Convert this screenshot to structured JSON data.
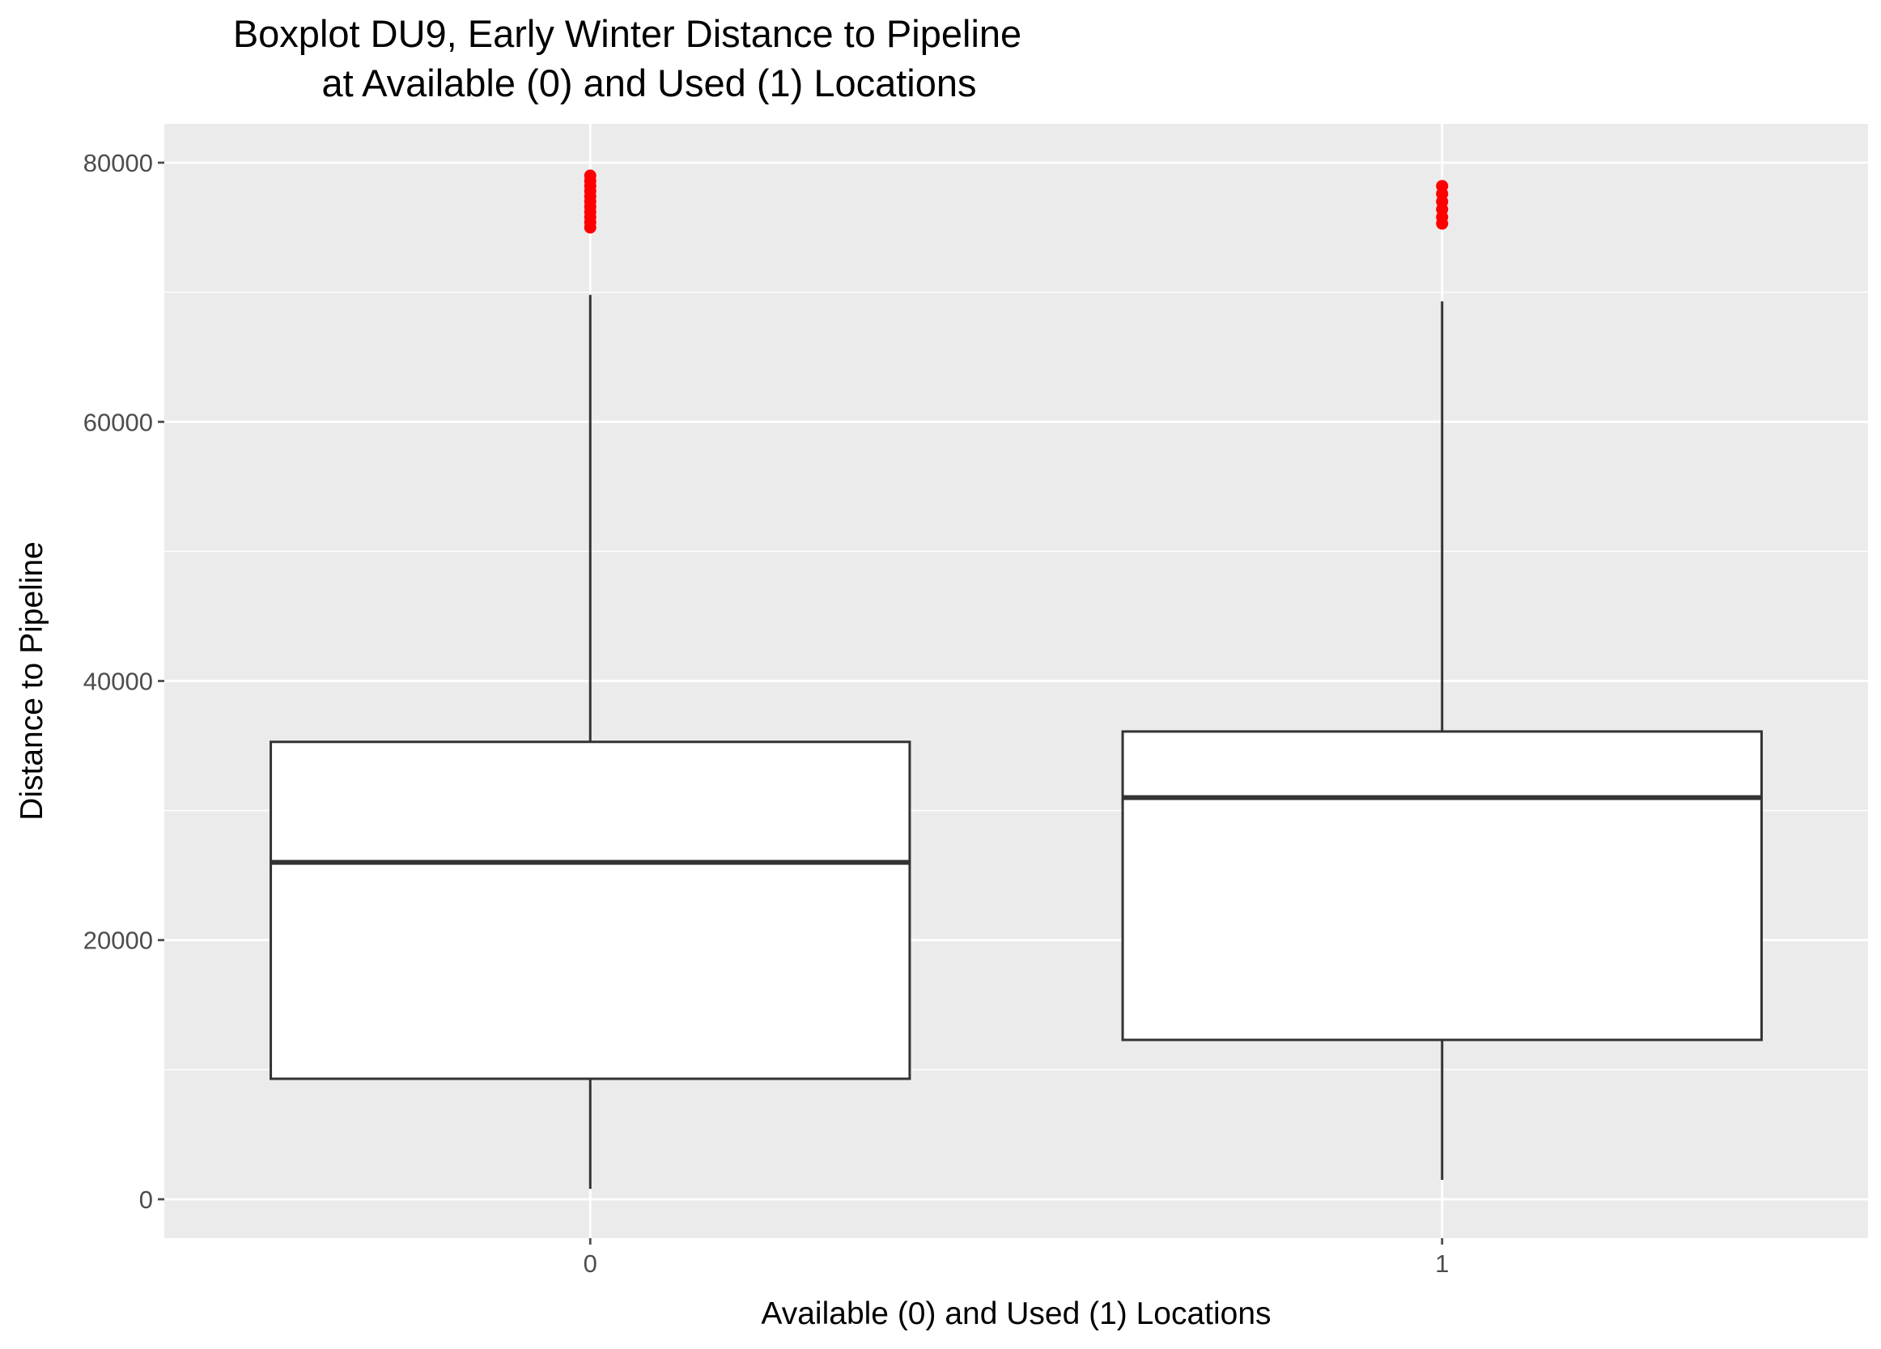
{
  "chart_data": {
    "type": "boxplot",
    "title_line1": "Boxplot DU9, Early Winter Distance to Pipeline",
    "title_line2": "at Available (0) and Used (1) Locations",
    "xlabel": "Available (0) and Used (1) Locations",
    "ylabel": "Distance to Pipeline",
    "ylim": [
      -3000,
      83000
    ],
    "yticks": [
      0,
      20000,
      40000,
      60000,
      80000
    ],
    "grid": true,
    "categories": [
      "0",
      "1"
    ],
    "boxes": [
      {
        "category": "0",
        "whisker_low": 800,
        "q1": 9300,
        "median": 26000,
        "q3": 35300,
        "whisker_high": 69800,
        "outliers": [
          75000,
          75400,
          75800,
          76200,
          76600,
          77000,
          77400,
          77800,
          78200,
          78600,
          79000
        ]
      },
      {
        "category": "1",
        "whisker_low": 1500,
        "q1": 12300,
        "median": 31000,
        "q3": 36100,
        "whisker_high": 69300,
        "outliers": [
          75300,
          75800,
          76400,
          77000,
          77600,
          78200
        ]
      }
    ],
    "colors": {
      "panel_bg": "#EBEBEB",
      "grid": "#FFFFFF",
      "box_fill": "#FFFFFF",
      "box_line": "#333333",
      "outlier": "#FF0000",
      "tick_text": "#4D4D4D",
      "label_text": "#000000"
    }
  }
}
